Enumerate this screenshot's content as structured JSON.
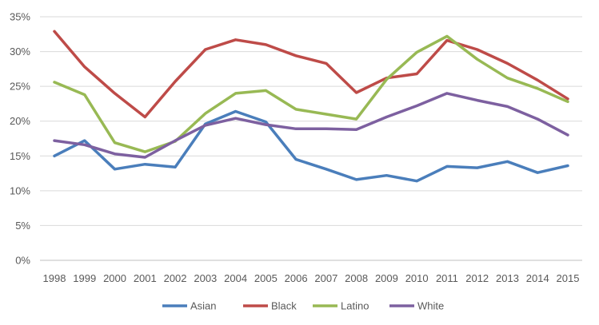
{
  "chart_data": {
    "type": "line",
    "title": "",
    "xlabel": "",
    "ylabel": "",
    "categories": [
      "1998",
      "1999",
      "2000",
      "2001",
      "2002",
      "2003",
      "2004",
      "2005",
      "2006",
      "2007",
      "2008",
      "2009",
      "2010",
      "2011",
      "2012",
      "2013",
      "2014",
      "2015"
    ],
    "ylim": [
      0,
      35
    ],
    "yticks": [
      "0%",
      "5%",
      "10%",
      "15%",
      "20%",
      "25%",
      "30%",
      "35%"
    ],
    "grid": true,
    "legend_position": "bottom",
    "series": [
      {
        "name": "Asian",
        "color": "#4a7ebb",
        "values": [
          15.0,
          17.2,
          13.1,
          13.8,
          13.4,
          19.6,
          21.4,
          19.9,
          14.5,
          13.1,
          11.6,
          12.2,
          11.4,
          13.5,
          13.3,
          14.2,
          12.6,
          13.6
        ]
      },
      {
        "name": "Black",
        "color": "#be4b48",
        "values": [
          32.9,
          27.8,
          24.0,
          20.6,
          25.7,
          30.3,
          31.7,
          31.0,
          29.4,
          28.3,
          24.1,
          26.2,
          26.8,
          31.6,
          30.3,
          28.3,
          25.9,
          23.2
        ]
      },
      {
        "name": "Latino",
        "color": "#98b954",
        "values": [
          25.6,
          23.8,
          16.9,
          15.6,
          17.1,
          21.1,
          24.0,
          24.4,
          21.7,
          21.0,
          20.3,
          26.0,
          29.9,
          32.2,
          28.9,
          26.2,
          24.7,
          22.8
        ]
      },
      {
        "name": "White",
        "color": "#7d60a0",
        "values": [
          17.2,
          16.6,
          15.3,
          14.8,
          17.2,
          19.4,
          20.4,
          19.5,
          18.9,
          18.9,
          18.8,
          20.6,
          22.2,
          24.0,
          23.0,
          22.1,
          20.3,
          18.0
        ]
      }
    ]
  }
}
